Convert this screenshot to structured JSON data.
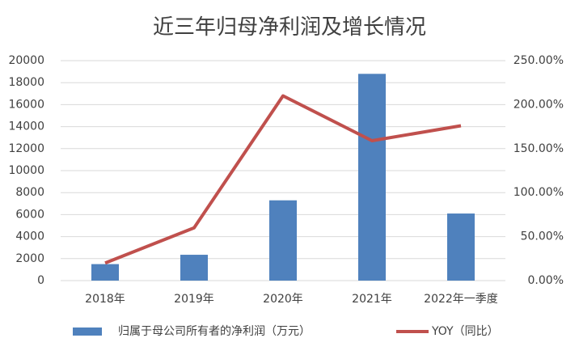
{
  "chart_data": {
    "type": "bar",
    "title": "近三年归母净利润及增长情况",
    "categories": [
      "2018年",
      "2019年",
      "2020年",
      "2021年",
      "2022年一季度"
    ],
    "series": [
      {
        "name": "归属于母公司所有者的净利润（万元）",
        "color": "#4f81bd",
        "values": [
          1500,
          2350,
          7300,
          18800,
          6100
        ]
      },
      {
        "name": "YOY（同比）",
        "color": "#c0504d",
        "type": "line",
        "axis": "y2",
        "values": [
          20,
          60,
          210,
          159,
          176
        ]
      }
    ],
    "ylim": [
      0,
      20000
    ],
    "yticks": [
      0,
      2000,
      4000,
      6000,
      8000,
      10000,
      12000,
      14000,
      16000,
      18000,
      20000
    ],
    "y2lim": [
      0,
      250
    ],
    "y2ticks": [
      {
        "value": 0,
        "label": "0.00%"
      },
      {
        "value": 50,
        "label": "50.00%"
      },
      {
        "value": 100,
        "label": "100.00%"
      },
      {
        "value": 150,
        "label": "150.00%"
      },
      {
        "value": 200,
        "label": "200.00%"
      },
      {
        "value": 250,
        "label": "250.00%"
      }
    ],
    "grid": true,
    "legend": "bottom"
  }
}
